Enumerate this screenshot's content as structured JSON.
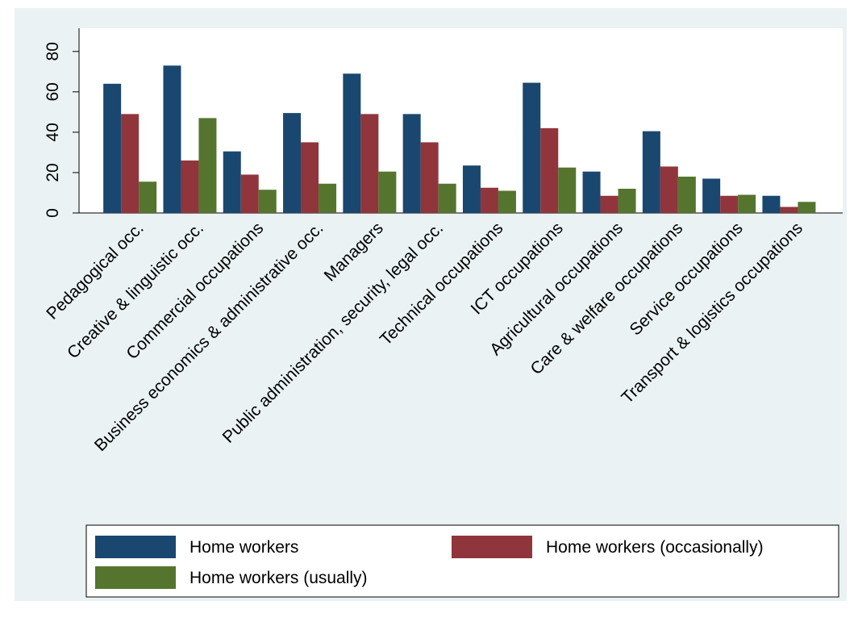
{
  "chart_data": {
    "type": "bar",
    "categories": [
      "Pedagogical occ.",
      "Creative & linguistic occ.",
      "Commercial occupations",
      "Business economics & administrative occ.",
      "Managers",
      "Public administration, security, legal occ.",
      "Technical occupations",
      "ICT occupations",
      "Agricultural occupations",
      "Care & welfare occupations",
      "Service occupations",
      "Transport & logistics occupations"
    ],
    "series": [
      {
        "name": "Home workers",
        "color": "#1a476f",
        "values": [
          64,
          73,
          30.5,
          49.5,
          69,
          49,
          23.5,
          64.5,
          20.5,
          40.5,
          17,
          8.5
        ]
      },
      {
        "name": "Home workers (occasionally)",
        "color": "#90353b",
        "values": [
          49,
          26,
          19,
          35,
          49,
          35,
          12.5,
          42,
          8.5,
          23,
          8.5,
          3
        ]
      },
      {
        "name": "Home workers (usually)",
        "color": "#55752f",
        "values": [
          15.5,
          47,
          11.5,
          14.5,
          20.5,
          14.5,
          11,
          22.5,
          12,
          18,
          9,
          5.5
        ]
      }
    ],
    "ylim": [
      0,
      91.5
    ],
    "yticks": [
      0,
      20,
      40,
      60,
      80
    ],
    "grid": false
  }
}
